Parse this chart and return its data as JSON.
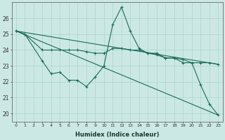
{
  "xlabel": "Humidex (Indice chaleur)",
  "x": [
    0,
    1,
    2,
    3,
    4,
    5,
    6,
    7,
    8,
    9,
    10,
    11,
    12,
    13,
    14,
    15,
    16,
    17,
    18,
    19,
    20,
    21,
    22,
    23
  ],
  "line_zigzag": [
    25.2,
    25.0,
    null,
    23.3,
    22.5,
    22.6,
    22.1,
    22.1,
    21.7,
    22.3,
    23.0,
    25.6,
    26.7,
    25.2,
    24.1,
    23.8,
    23.8,
    23.5,
    23.5,
    23.2,
    23.2,
    21.8,
    20.6,
    19.9
  ],
  "line_flat_upper": [
    25.2,
    25.0,
    null,
    24.0,
    24.0,
    24.0,
    24.0,
    24.0,
    23.9,
    23.8,
    23.8,
    24.1,
    24.1,
    24.0,
    24.0,
    23.8,
    23.7,
    23.5,
    23.5,
    23.4,
    23.2,
    23.2,
    23.2,
    23.1
  ],
  "trend1_x": [
    0,
    23
  ],
  "trend1_y": [
    25.2,
    19.9
  ],
  "trend2_x": [
    0,
    23
  ],
  "trend2_y": [
    25.2,
    23.1
  ],
  "bg_color": "#cce8e4",
  "grid_color": "#aad4ce",
  "line_color": "#1a6b5a",
  "ylim": [
    19.5,
    27.0
  ],
  "yticks": [
    20,
    21,
    22,
    23,
    24,
    25,
    26
  ],
  "xlim": [
    -0.5,
    23.5
  ]
}
